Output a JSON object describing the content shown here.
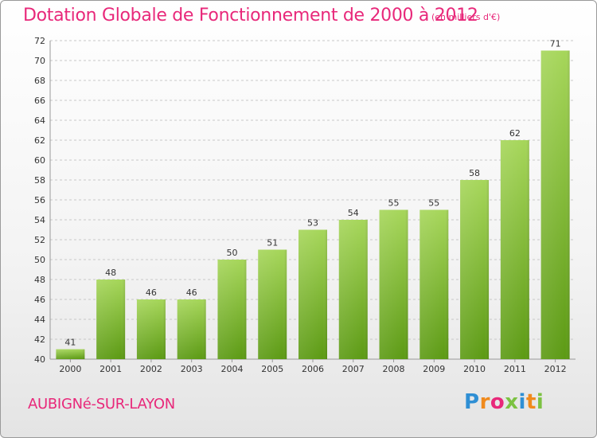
{
  "title": "Dotation Globale de Fonctionnement de 2000 à 2012",
  "unit_note": "(en milliers d'€)",
  "commune": "AUBIGNé-SUR-LAYON",
  "logo": {
    "text": "Proxiti",
    "letter_colors": [
      "#2f8fd4",
      "#f08a1c",
      "#e8287a",
      "#7cc242",
      "#2f8fd4",
      "#f08a1c",
      "#7cc242"
    ]
  },
  "colors": {
    "title": "#e8287a",
    "bar_top": "#a6d65a",
    "bar_bottom": "#5c9a14",
    "grid": "#c8c8c8",
    "axis_text": "#333333"
  },
  "chart_data": {
    "type": "bar",
    "categories": [
      "2000",
      "2001",
      "2002",
      "2003",
      "2004",
      "2005",
      "2006",
      "2007",
      "2008",
      "2009",
      "2010",
      "2011",
      "2012"
    ],
    "values": [
      41,
      48,
      46,
      46,
      50,
      51,
      53,
      54,
      55,
      55,
      58,
      62,
      71
    ],
    "ylim": [
      40,
      72
    ],
    "yticks": [
      40,
      42,
      44,
      46,
      48,
      50,
      52,
      54,
      56,
      58,
      60,
      62,
      64,
      66,
      68,
      70,
      72
    ],
    "grid": true,
    "data_labels": true
  }
}
